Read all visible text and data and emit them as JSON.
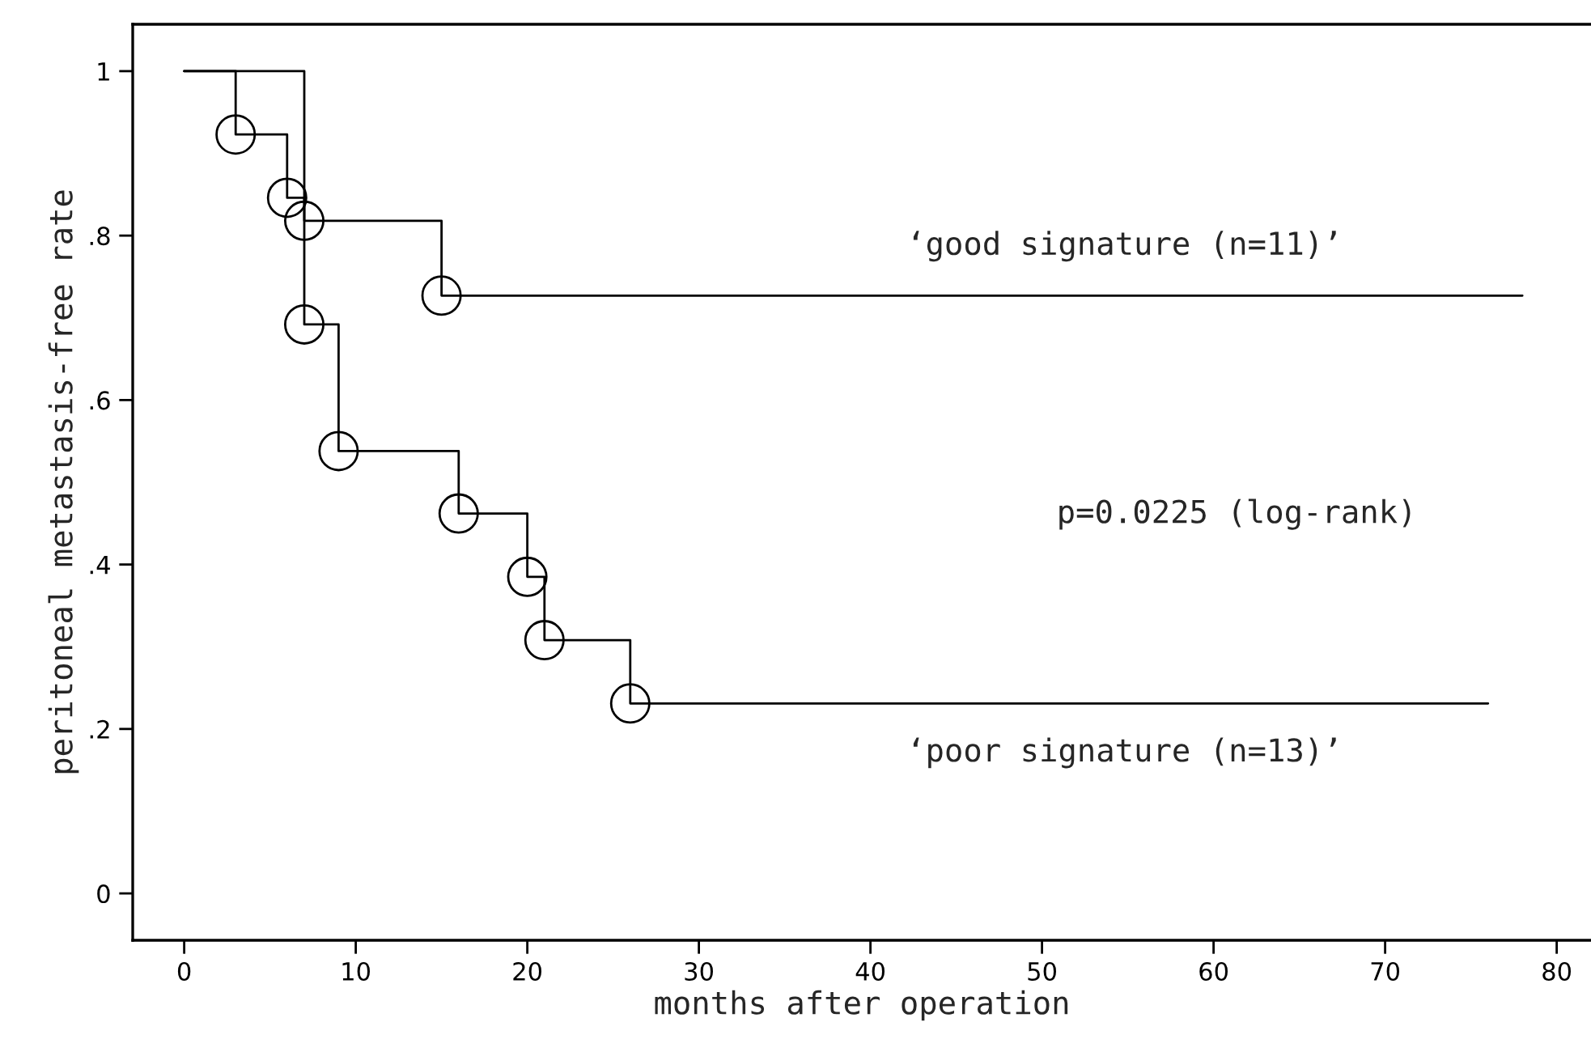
{
  "chart_data": {
    "type": "step",
    "xlabel": "months after operation",
    "ylabel": "peritoneal metastasis-free rate",
    "xlim": [
      -3,
      82
    ],
    "xticks": [
      0,
      10,
      20,
      30,
      40,
      50,
      60,
      70,
      80
    ],
    "ylim": [
      -0.057,
      1.057
    ],
    "yticks": [
      0,
      {
        "value": 0.2,
        "label": ".2"
      },
      {
        "value": 0.4,
        "label": ".4"
      },
      {
        "value": 0.6,
        "label": ".6"
      },
      {
        "value": 0.8,
        "label": ".8"
      },
      1
    ],
    "grid": false,
    "legend": false,
    "series": [
      {
        "name": "‘good signature (n=11)’",
        "color": "#000000",
        "marker": "none",
        "x": [
          0,
          7,
          15,
          78
        ],
        "values": [
          1,
          0.818,
          0.727,
          0.727
        ]
      },
      {
        "name": "‘poor signature (n=13)’",
        "color": "#000000",
        "marker": "none",
        "x": [
          0,
          3,
          6,
          7,
          9,
          16,
          20,
          21,
          26,
          76
        ],
        "values": [
          1,
          0.923,
          0.846,
          0.692,
          0.538,
          0.462,
          0.385,
          0.308,
          0.231,
          0.231
        ]
      },
      {
        "type": "scatter",
        "color": "#000000",
        "marker": "circle",
        "x": [
          7,
          15
        ],
        "values": [
          0.818,
          0.727
        ]
      },
      {
        "type": "scatter",
        "color": "#000000",
        "marker": "circle",
        "x": [
          3,
          6,
          7,
          9,
          16,
          20,
          21,
          26
        ],
        "values": [
          0.923,
          0.846,
          0.692,
          0.538,
          0.462,
          0.385,
          0.308,
          0.231
        ]
      }
    ],
    "annotations": [
      "p=0.0225 (log-rank)"
    ]
  }
}
